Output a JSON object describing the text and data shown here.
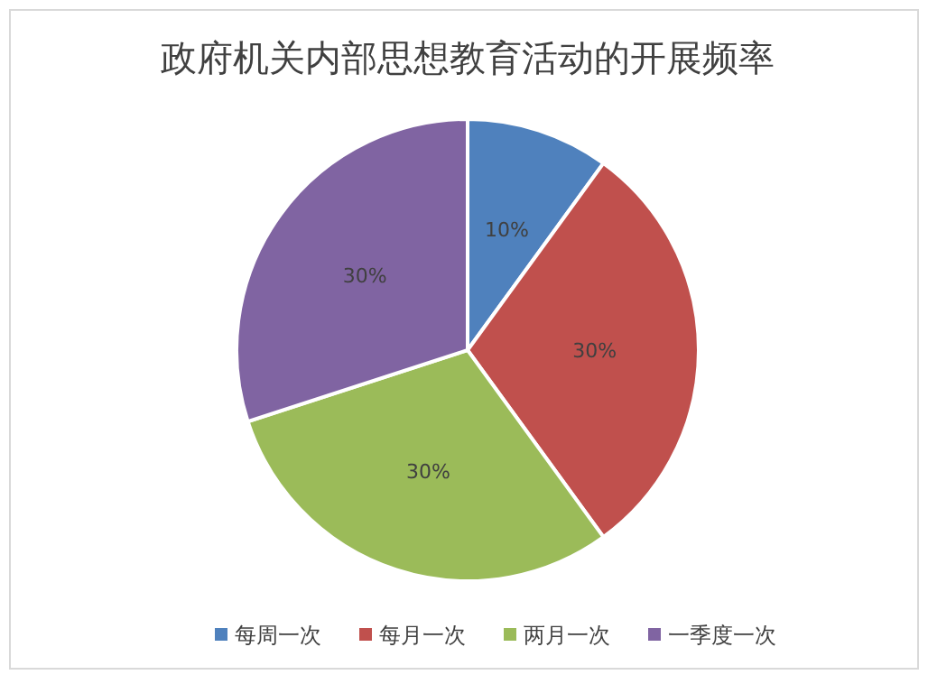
{
  "chart_data": {
    "type": "pie",
    "title": "政府机关内部思想教育活动的开展频率",
    "categories": [
      "每周一次",
      "每月一次",
      "两月一次",
      "一季度一次"
    ],
    "values": [
      10,
      30,
      30,
      30
    ],
    "value_labels": [
      "10%",
      "30%",
      "30%",
      "30%"
    ],
    "colors": [
      "#4f81bd",
      "#c0504d",
      "#9bbb59",
      "#8064a2"
    ],
    "legend": "bottom"
  }
}
